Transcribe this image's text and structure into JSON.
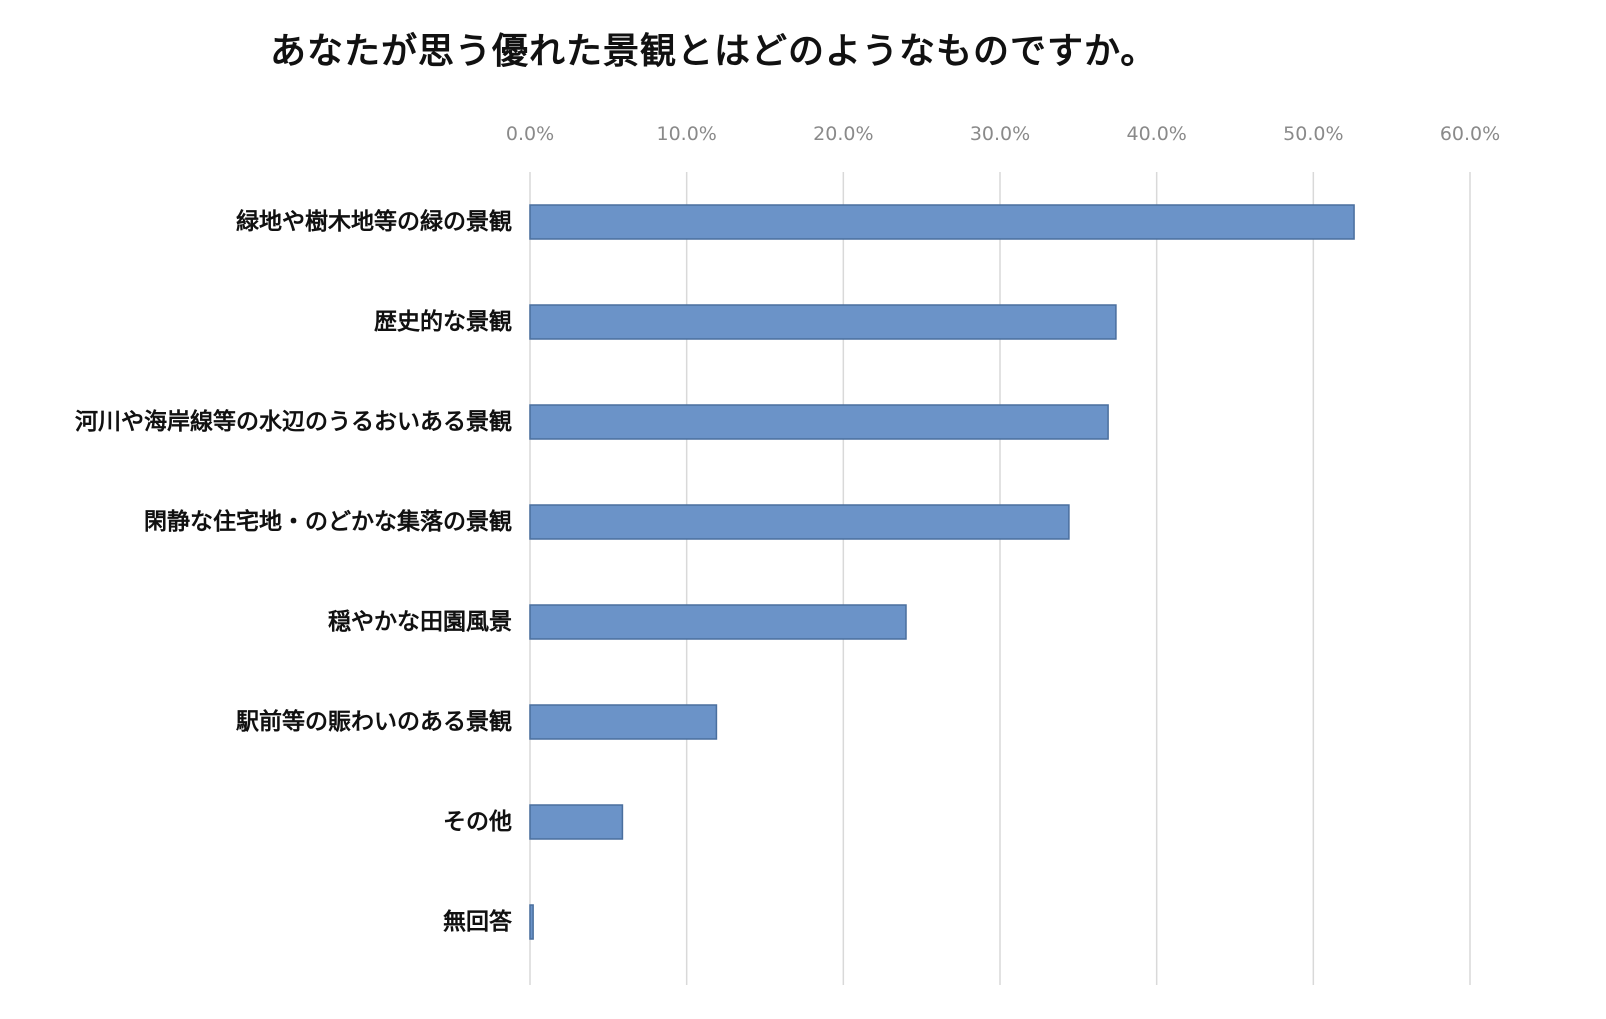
{
  "chart_data": {
    "type": "bar",
    "orientation": "horizontal",
    "title": "あなたが思う優れた景観とはどのようなものですか。",
    "categories": [
      "緑地や樹木地等の緑の景観",
      "歴史的な景観",
      "河川や海岸線等の水辺のうるおいある景観",
      "閑静な住宅地・のどかな集落の景観",
      "穏やかな田園風景",
      "駅前等の賑わいのある景観",
      "その他",
      "無回答"
    ],
    "values": [
      52.6,
      37.4,
      36.9,
      34.4,
      24.0,
      11.9,
      5.9,
      0.2
    ],
    "x_ticks": [
      "0.0%",
      "10.0%",
      "20.0%",
      "30.0%",
      "40.0%",
      "50.0%",
      "60.0%"
    ],
    "xlim": [
      0,
      60
    ],
    "xlabel": "",
    "ylabel": "",
    "grid": true,
    "axis_position": "top",
    "bar_color": "#6b93c8",
    "bar_edge_color": "#4a6f9e",
    "grid_color": "#d9d9d9"
  }
}
